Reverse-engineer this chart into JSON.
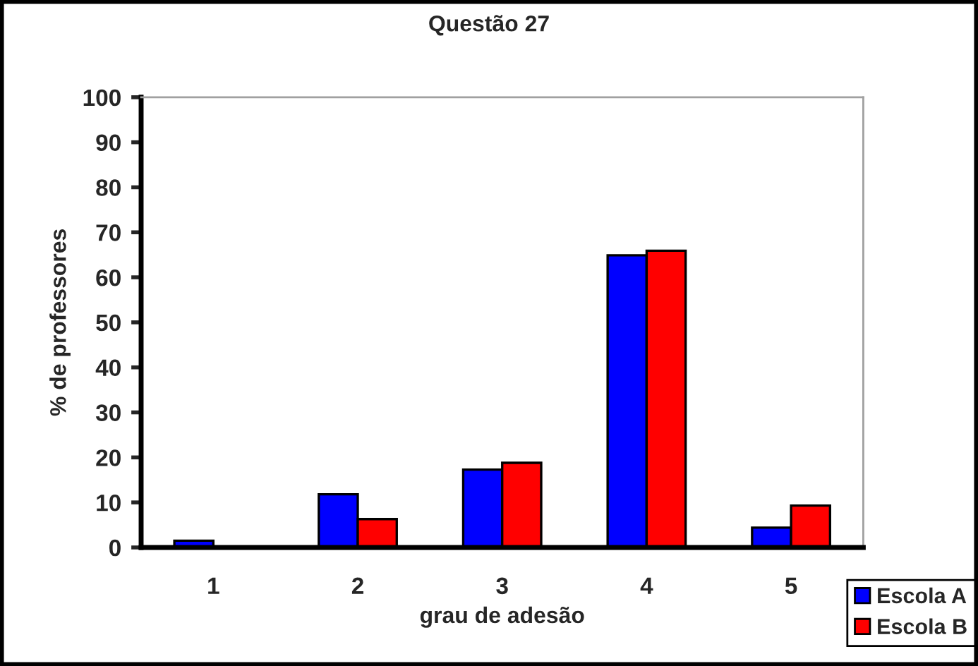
{
  "chart_data": {
    "type": "bar",
    "title": "Questão 27",
    "xlabel": "grau de adesão",
    "ylabel": "% de professores",
    "categories": [
      "1",
      "2",
      "3",
      "4",
      "5"
    ],
    "series": [
      {
        "name": "Escola A",
        "color": "#0000ff",
        "values": [
          1.5,
          11.8,
          17.3,
          64.9,
          4.4
        ]
      },
      {
        "name": "Escola B",
        "color": "#ff0000",
        "values": [
          null,
          6.3,
          18.8,
          65.9,
          9.3
        ]
      }
    ],
    "ylim": [
      0,
      100
    ],
    "yticks": [
      0,
      10,
      20,
      30,
      40,
      50,
      60,
      70,
      80,
      90,
      100
    ],
    "legend": "bottom right"
  }
}
